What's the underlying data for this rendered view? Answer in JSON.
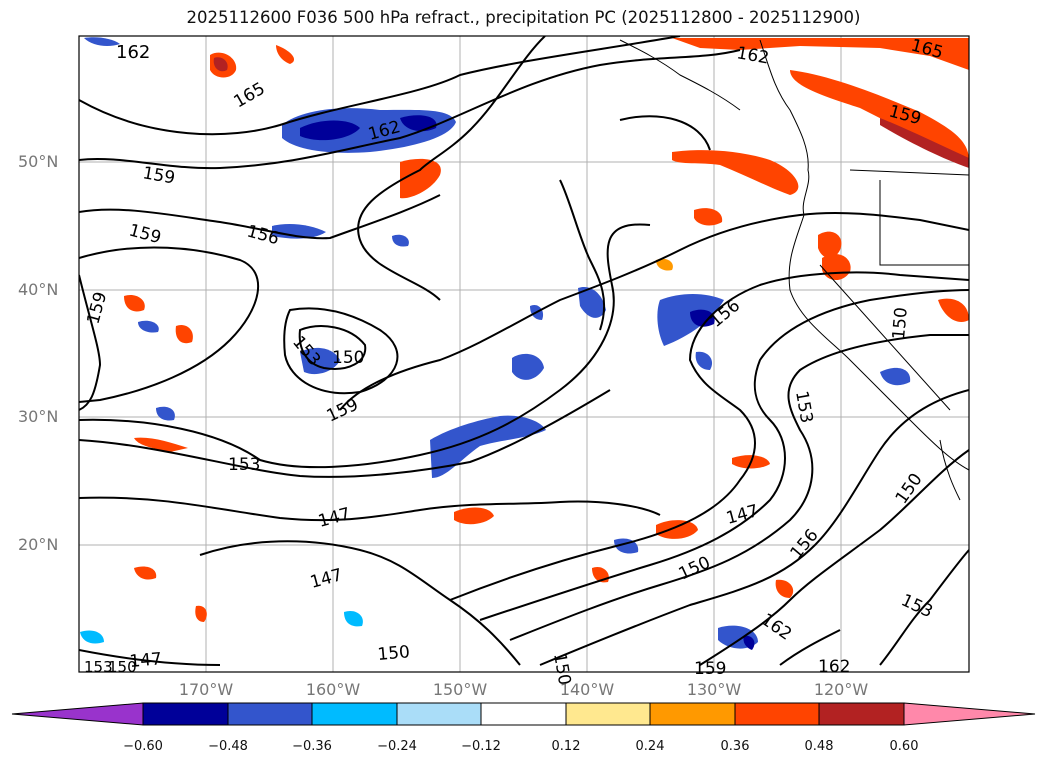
{
  "title": "2025112600 F036 500 hPa refract., precipitation PC (2025112800 - 2025112900)",
  "lat_labels": [
    "50°N",
    "40°N",
    "30°N",
    "20°N"
  ],
  "lon_labels": [
    "170°W",
    "160°W",
    "150°W",
    "140°W",
    "130°W",
    "120°W"
  ],
  "colorbar": {
    "ticks": [
      "−0.60",
      "−0.48",
      "−0.36",
      "−0.24",
      "−0.12",
      "0.12",
      "0.24",
      "0.36",
      "0.48",
      "0.60"
    ],
    "colors": [
      "#9933cc",
      "#000099",
      "#3355cc",
      "#00bbff",
      "#aaddf8",
      "#ffffff",
      "#ffe88f",
      "#ff9900",
      "#ff4400",
      "#b22222",
      "#ff88aa"
    ]
  },
  "contour_labels": [
    {
      "text": "162"
    },
    {
      "text": "165"
    },
    {
      "text": "162"
    },
    {
      "text": "159"
    },
    {
      "text": "159"
    },
    {
      "text": "156"
    },
    {
      "text": "159"
    },
    {
      "text": "153"
    },
    {
      "text": "150"
    },
    {
      "text": "159"
    },
    {
      "text": "153"
    },
    {
      "text": "147"
    },
    {
      "text": "147"
    },
    {
      "text": "150"
    },
    {
      "text": "153"
    },
    {
      "text": "150"
    },
    {
      "text": "147"
    },
    {
      "text": "162"
    },
    {
      "text": "165"
    },
    {
      "text": "159"
    },
    {
      "text": "156"
    },
    {
      "text": "153"
    },
    {
      "text": "150"
    },
    {
      "text": "147"
    },
    {
      "text": "150"
    },
    {
      "text": "156"
    },
    {
      "text": "162"
    },
    {
      "text": "159"
    },
    {
      "text": "162"
    },
    {
      "text": "153"
    },
    {
      "text": "150"
    },
    {
      "text": "150"
    }
  ]
}
